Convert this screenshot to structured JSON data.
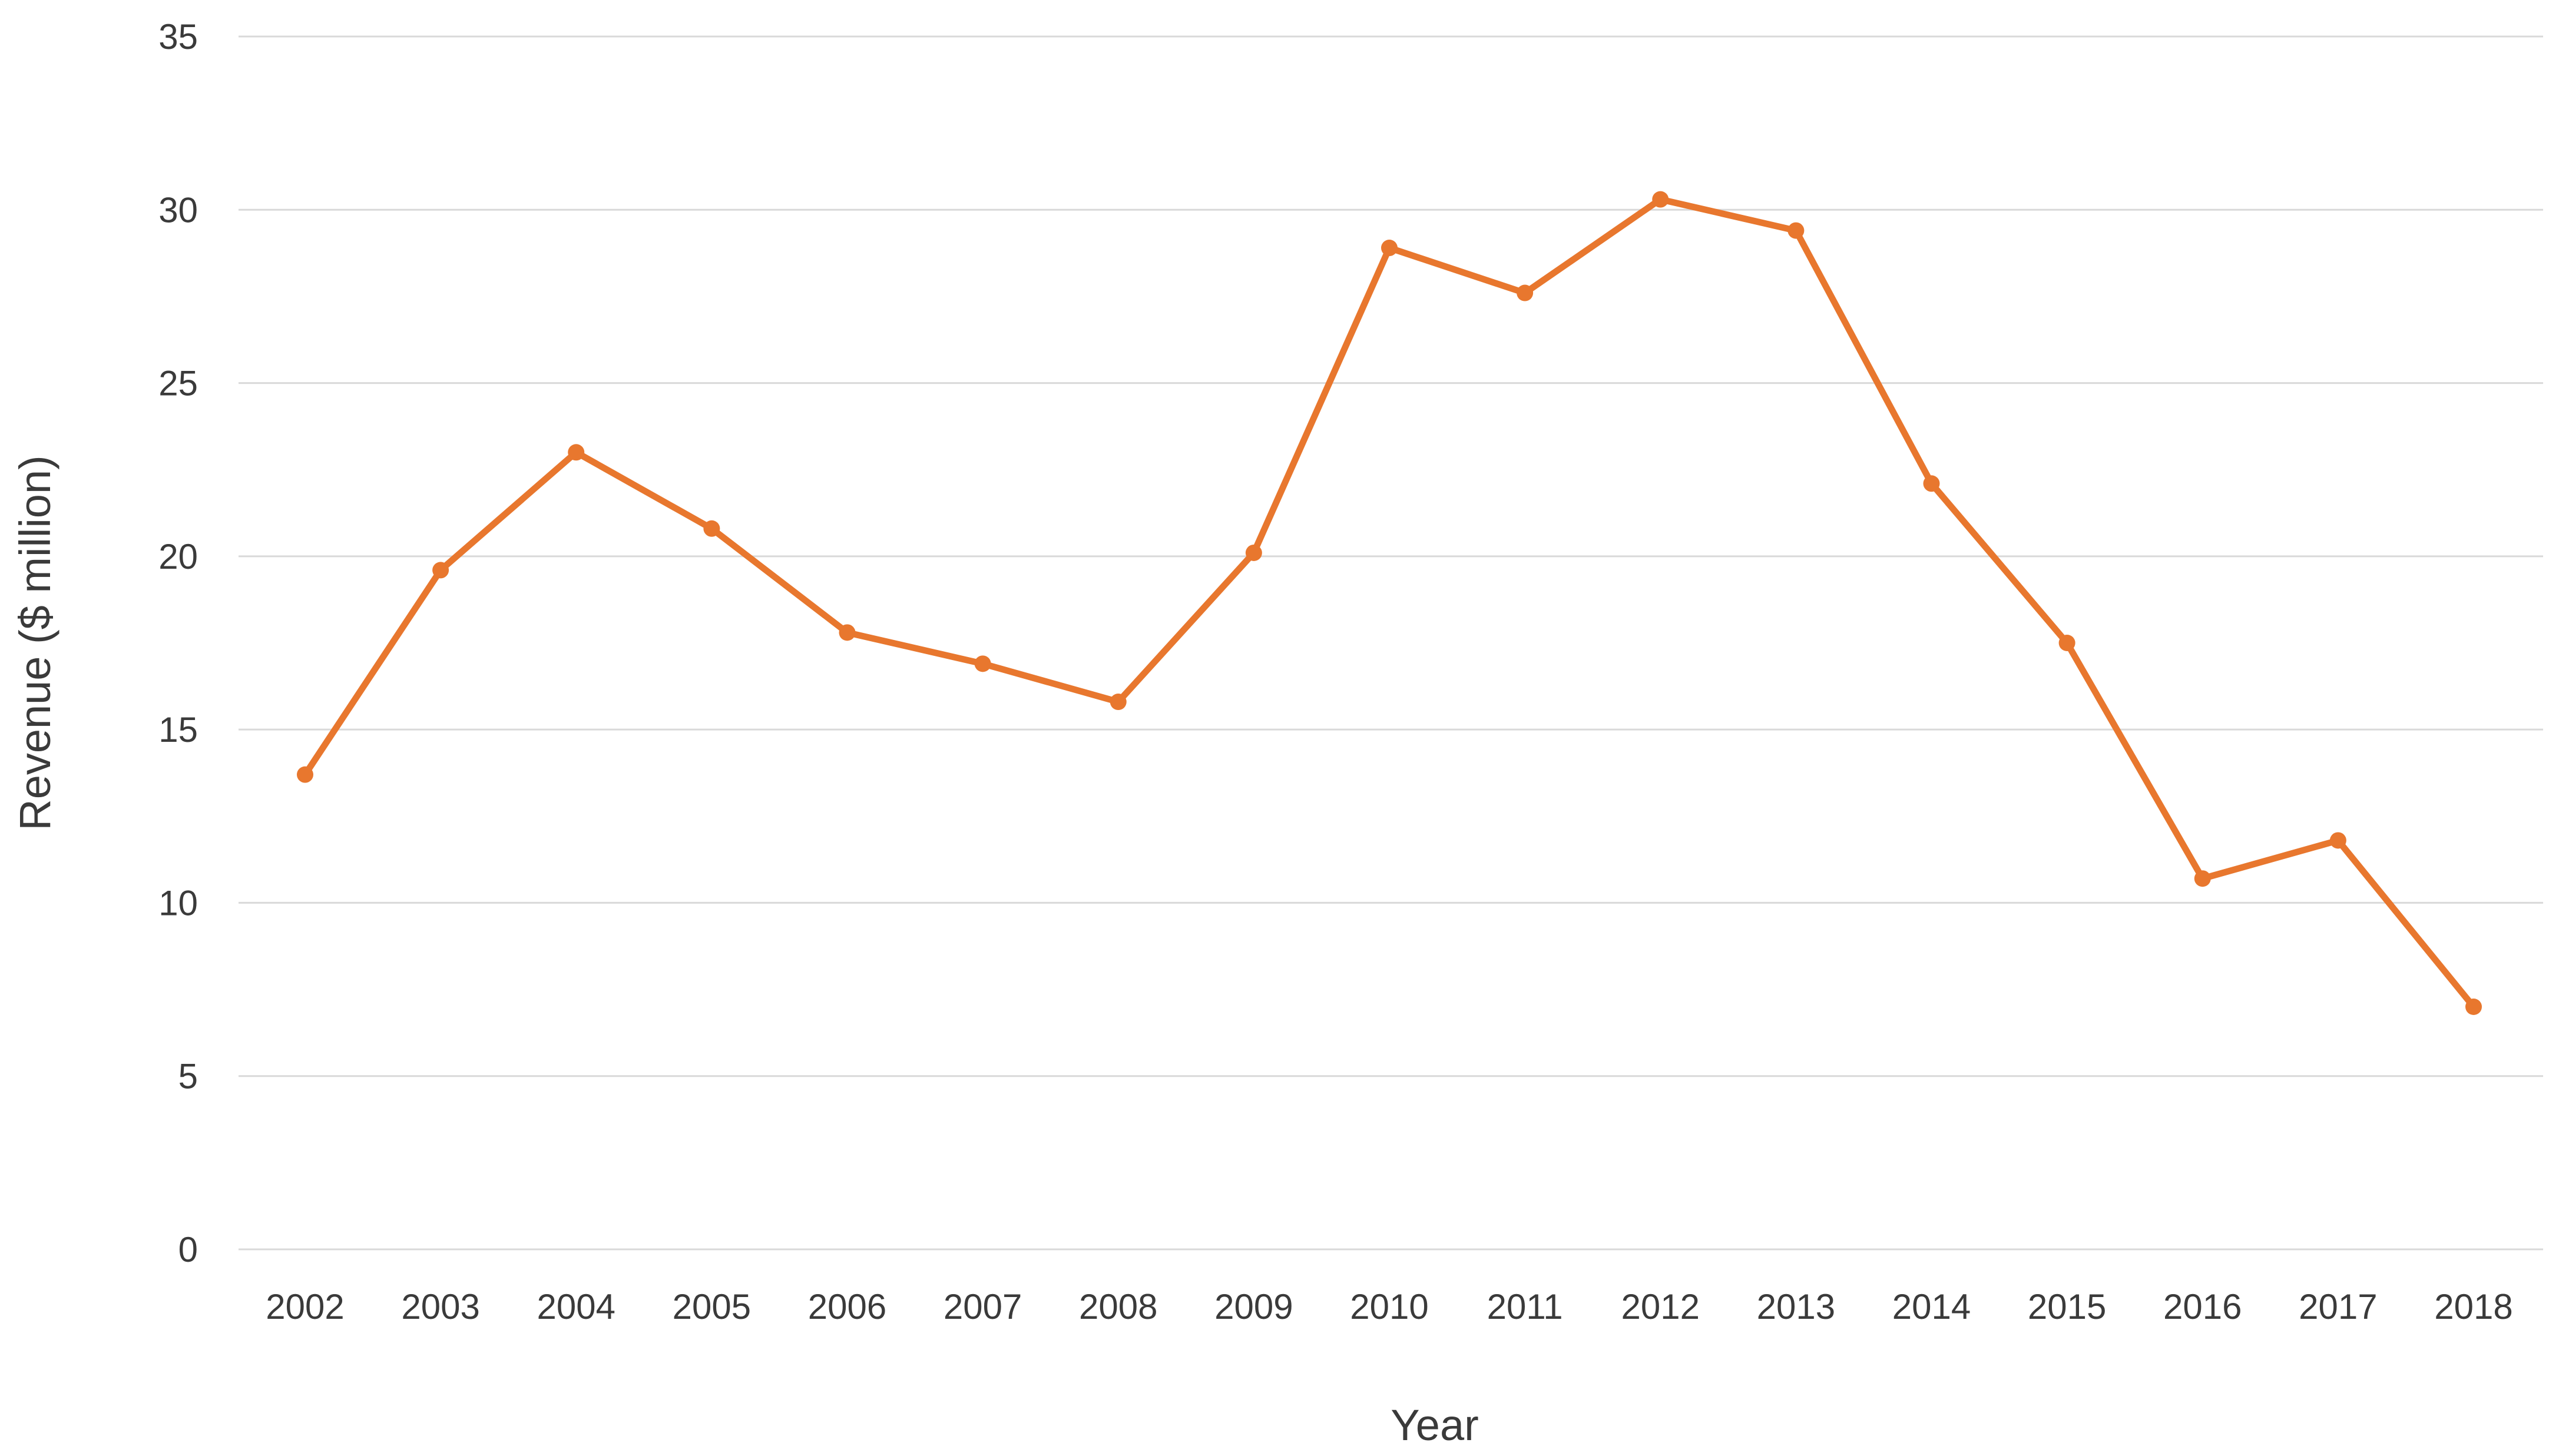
{
  "chart_data": {
    "type": "line",
    "title": "",
    "xlabel": "Year",
    "ylabel": "Revenue ($ million)",
    "categories": [
      "2002",
      "2003",
      "2004",
      "2005",
      "2006",
      "2007",
      "2008",
      "2009",
      "2010",
      "2011",
      "2012",
      "2013",
      "2014",
      "2015",
      "2016",
      "2017",
      "2018"
    ],
    "series": [
      {
        "values": [
          13.7,
          19.6,
          23.0,
          20.8,
          17.8,
          16.9,
          15.8,
          20.1,
          28.9,
          27.6,
          30.3,
          29.4,
          22.1,
          17.5,
          10.7,
          11.8,
          7.0
        ],
        "color": "#E8772E"
      }
    ],
    "ylim": [
      0,
      35
    ],
    "yticks": [
      "0",
      "5",
      "10",
      "15",
      "20",
      "25",
      "30",
      "35"
    ],
    "grid": true,
    "legend": "none"
  }
}
